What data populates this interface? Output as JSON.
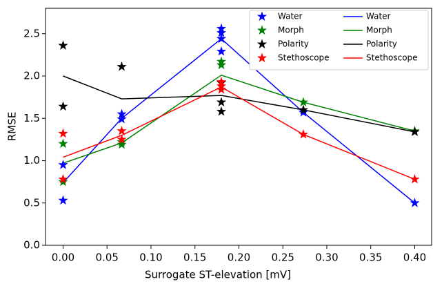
{
  "chart_data": {
    "type": "line",
    "x_label": "Surrogate ST-elevation [mV]",
    "y_label": "RMSE",
    "xlim": [
      -0.02,
      0.42
    ],
    "ylim": [
      0,
      2.8
    ],
    "xticks": [
      {
        "value": 0,
        "label": "0.00"
      },
      {
        "value": 0.05,
        "label": "0.05"
      },
      {
        "value": 0.1,
        "label": "0.10"
      },
      {
        "value": 0.15,
        "label": "0.15"
      },
      {
        "value": 0.2,
        "label": "0.20"
      },
      {
        "value": 0.25,
        "label": "0.25"
      },
      {
        "value": 0.3,
        "label": "0.30"
      },
      {
        "value": 0.35,
        "label": "0.35"
      },
      {
        "value": 0.4,
        "label": "0.40"
      }
    ],
    "yticks": [
      {
        "value": 0,
        "label": "0.0"
      },
      {
        "value": 0.5,
        "label": "0.5"
      },
      {
        "value": 1,
        "label": "1.0"
      },
      {
        "value": 1.5,
        "label": "1.5"
      },
      {
        "value": 2,
        "label": "2.0"
      },
      {
        "value": 2.5,
        "label": "2.5"
      }
    ],
    "grid": false,
    "legend": "upper right",
    "series": [
      {
        "name": "Water",
        "color": "#0000ff",
        "mode": "markers",
        "x": [
          0,
          0,
          0.0667,
          0.0667,
          0.18,
          0.18,
          0.18,
          0.18,
          0.2733,
          0.4
        ],
        "values": [
          0.95,
          0.53,
          1.55,
          1.49,
          2.56,
          2.51,
          2.44,
          2.29,
          1.57,
          0.5
        ]
      },
      {
        "name": "Morph",
        "color": "#008000",
        "mode": "markers",
        "x": [
          0,
          0,
          0.0667,
          0.0667,
          0.18,
          0.18,
          0.2733,
          0.4
        ],
        "values": [
          1.2,
          0.75,
          1.19,
          1.22,
          2.17,
          2.13,
          1.69,
          1.35
        ]
      },
      {
        "name": "Polarity",
        "color": "#000000",
        "mode": "markers",
        "x": [
          0,
          0,
          0.0667,
          0.18,
          0.18,
          0.18,
          0.2733,
          0.4
        ],
        "values": [
          2.36,
          1.64,
          2.11,
          1.69,
          1.58,
          1.92,
          1.6,
          1.34
        ]
      },
      {
        "name": "Stethoscope",
        "color": "#ff0000",
        "mode": "markers",
        "x": [
          0,
          0,
          0.0667,
          0.0667,
          0.18,
          0.18,
          0.18,
          0.2733,
          0.4
        ],
        "values": [
          1.32,
          0.78,
          1.35,
          1.25,
          1.93,
          1.88,
          1.84,
          1.31,
          0.78
        ]
      },
      {
        "name": "Water",
        "color": "#0000ff",
        "mode": "lines",
        "x": [
          0,
          0.0667,
          0.18,
          0.2733,
          0.4
        ],
        "values": [
          0.74,
          1.5,
          2.44,
          1.57,
          0.5
        ]
      },
      {
        "name": "Morph",
        "color": "#008000",
        "mode": "lines",
        "x": [
          0,
          0.0667,
          0.18,
          0.2733,
          0.4
        ],
        "values": [
          0.97,
          1.21,
          2.01,
          1.69,
          1.35
        ]
      },
      {
        "name": "Polarity",
        "color": "#000000",
        "mode": "lines",
        "x": [
          0,
          0.0667,
          0.18,
          0.2733,
          0.4
        ],
        "values": [
          2.0,
          1.73,
          1.77,
          1.6,
          1.34
        ]
      },
      {
        "name": "Stethoscope",
        "color": "#ff0000",
        "mode": "lines",
        "x": [
          0,
          0.0667,
          0.18,
          0.2733,
          0.4
        ],
        "values": [
          1.04,
          1.3,
          1.87,
          1.31,
          0.78
        ]
      }
    ]
  }
}
